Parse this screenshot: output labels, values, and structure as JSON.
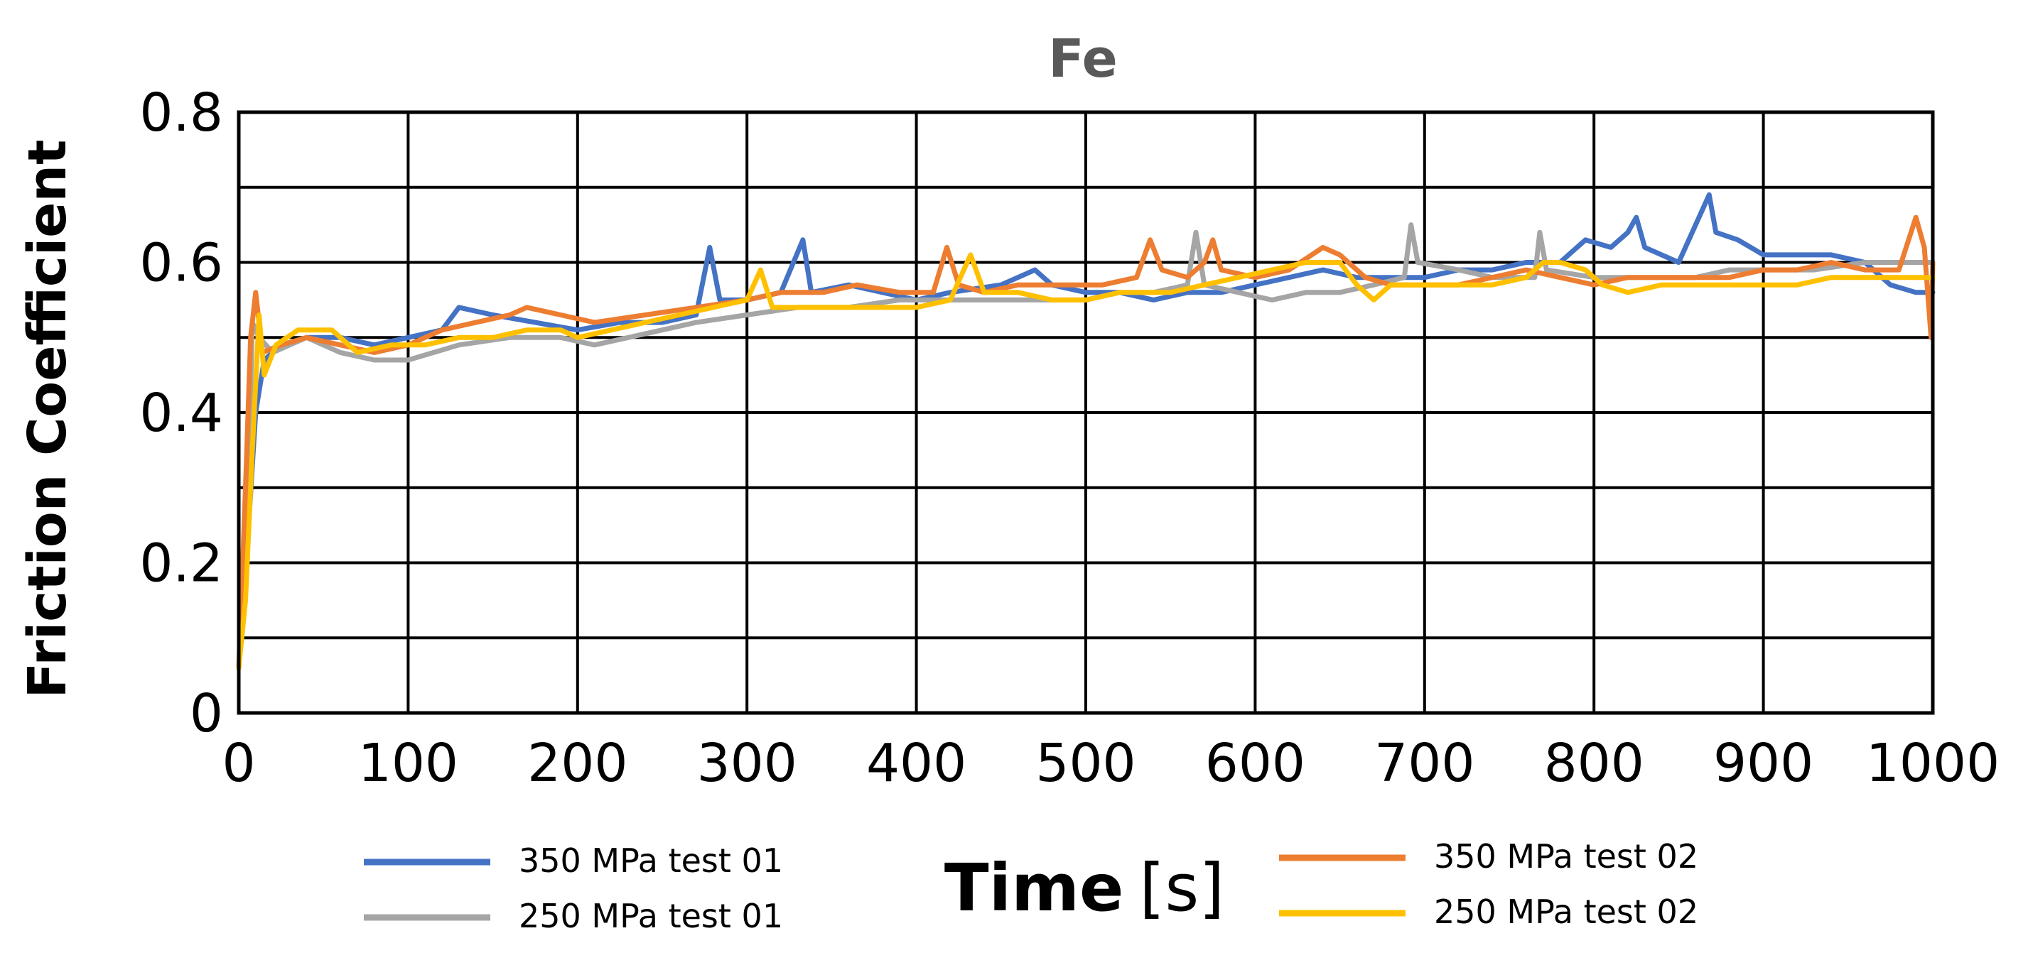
{
  "chart_data": {
    "type": "line",
    "title": "Fe",
    "ylabel": "Friction Coefficient",
    "xlabel_bold": "Time",
    "xlabel_unit": "[s]",
    "xlim": [
      0,
      1000
    ],
    "ylim": [
      0,
      0.8
    ],
    "xticks": [
      0,
      100,
      200,
      300,
      400,
      500,
      600,
      700,
      800,
      900,
      1000
    ],
    "yticks": [
      0,
      0.2,
      0.4,
      0.6,
      0.8
    ],
    "ytick_labels": [
      "0",
      "0.2",
      "0.4",
      "0.6",
      "0.8"
    ],
    "grid": true,
    "series": [
      {
        "name": "350 MPa test 01",
        "color": "#4472C4",
        "points": [
          [
            0,
            0.06
          ],
          [
            5,
            0.22
          ],
          [
            10,
            0.4
          ],
          [
            15,
            0.47
          ],
          [
            25,
            0.49
          ],
          [
            40,
            0.5
          ],
          [
            60,
            0.5
          ],
          [
            80,
            0.49
          ],
          [
            100,
            0.5
          ],
          [
            120,
            0.51
          ],
          [
            130,
            0.54
          ],
          [
            150,
            0.53
          ],
          [
            175,
            0.52
          ],
          [
            200,
            0.51
          ],
          [
            225,
            0.52
          ],
          [
            250,
            0.52
          ],
          [
            270,
            0.53
          ],
          [
            278,
            0.62
          ],
          [
            284,
            0.55
          ],
          [
            300,
            0.55
          ],
          [
            320,
            0.56
          ],
          [
            333,
            0.63
          ],
          [
            338,
            0.56
          ],
          [
            360,
            0.57
          ],
          [
            380,
            0.56
          ],
          [
            400,
            0.55
          ],
          [
            420,
            0.56
          ],
          [
            450,
            0.57
          ],
          [
            470,
            0.59
          ],
          [
            480,
            0.57
          ],
          [
            500,
            0.56
          ],
          [
            520,
            0.56
          ],
          [
            540,
            0.55
          ],
          [
            560,
            0.56
          ],
          [
            580,
            0.56
          ],
          [
            600,
            0.57
          ],
          [
            620,
            0.58
          ],
          [
            640,
            0.59
          ],
          [
            660,
            0.58
          ],
          [
            680,
            0.58
          ],
          [
            700,
            0.58
          ],
          [
            720,
            0.59
          ],
          [
            740,
            0.59
          ],
          [
            760,
            0.6
          ],
          [
            780,
            0.6
          ],
          [
            795,
            0.63
          ],
          [
            810,
            0.62
          ],
          [
            820,
            0.64
          ],
          [
            825,
            0.66
          ],
          [
            830,
            0.62
          ],
          [
            850,
            0.6
          ],
          [
            868,
            0.69
          ],
          [
            872,
            0.64
          ],
          [
            885,
            0.63
          ],
          [
            900,
            0.61
          ],
          [
            920,
            0.61
          ],
          [
            940,
            0.61
          ],
          [
            960,
            0.6
          ],
          [
            975,
            0.57
          ],
          [
            990,
            0.56
          ],
          [
            1000,
            0.56
          ]
        ]
      },
      {
        "name": "250 MPa test 01",
        "color": "#A5A5A5",
        "points": [
          [
            0,
            0.06
          ],
          [
            5,
            0.25
          ],
          [
            8,
            0.52
          ],
          [
            12,
            0.5
          ],
          [
            20,
            0.48
          ],
          [
            40,
            0.5
          ],
          [
            60,
            0.48
          ],
          [
            80,
            0.47
          ],
          [
            100,
            0.47
          ],
          [
            130,
            0.49
          ],
          [
            160,
            0.5
          ],
          [
            190,
            0.5
          ],
          [
            210,
            0.49
          ],
          [
            230,
            0.5
          ],
          [
            250,
            0.51
          ],
          [
            270,
            0.52
          ],
          [
            300,
            0.53
          ],
          [
            330,
            0.54
          ],
          [
            360,
            0.54
          ],
          [
            390,
            0.55
          ],
          [
            400,
            0.55
          ],
          [
            420,
            0.55
          ],
          [
            440,
            0.55
          ],
          [
            460,
            0.55
          ],
          [
            480,
            0.55
          ],
          [
            500,
            0.55
          ],
          [
            520,
            0.56
          ],
          [
            540,
            0.56
          ],
          [
            560,
            0.57
          ],
          [
            565,
            0.64
          ],
          [
            570,
            0.57
          ],
          [
            590,
            0.56
          ],
          [
            610,
            0.55
          ],
          [
            630,
            0.56
          ],
          [
            650,
            0.56
          ],
          [
            670,
            0.57
          ],
          [
            688,
            0.58
          ],
          [
            692,
            0.65
          ],
          [
            696,
            0.6
          ],
          [
            720,
            0.59
          ],
          [
            740,
            0.58
          ],
          [
            765,
            0.58
          ],
          [
            768,
            0.64
          ],
          [
            772,
            0.59
          ],
          [
            800,
            0.58
          ],
          [
            830,
            0.58
          ],
          [
            860,
            0.58
          ],
          [
            880,
            0.59
          ],
          [
            900,
            0.59
          ],
          [
            930,
            0.59
          ],
          [
            960,
            0.6
          ],
          [
            1000,
            0.6
          ]
        ]
      },
      {
        "name": "350 MPa test 02",
        "color": "#ED7D31",
        "points": [
          [
            0,
            0.06
          ],
          [
            4,
            0.3
          ],
          [
            7,
            0.5
          ],
          [
            10,
            0.56
          ],
          [
            14,
            0.48
          ],
          [
            25,
            0.49
          ],
          [
            40,
            0.5
          ],
          [
            60,
            0.49
          ],
          [
            80,
            0.48
          ],
          [
            100,
            0.49
          ],
          [
            120,
            0.51
          ],
          [
            140,
            0.52
          ],
          [
            160,
            0.53
          ],
          [
            170,
            0.54
          ],
          [
            190,
            0.53
          ],
          [
            210,
            0.52
          ],
          [
            240,
            0.53
          ],
          [
            270,
            0.54
          ],
          [
            300,
            0.55
          ],
          [
            320,
            0.56
          ],
          [
            345,
            0.56
          ],
          [
            365,
            0.57
          ],
          [
            390,
            0.56
          ],
          [
            410,
            0.56
          ],
          [
            418,
            0.62
          ],
          [
            425,
            0.57
          ],
          [
            440,
            0.56
          ],
          [
            460,
            0.57
          ],
          [
            490,
            0.57
          ],
          [
            510,
            0.57
          ],
          [
            530,
            0.58
          ],
          [
            538,
            0.63
          ],
          [
            545,
            0.59
          ],
          [
            560,
            0.58
          ],
          [
            570,
            0.6
          ],
          [
            575,
            0.63
          ],
          [
            580,
            0.59
          ],
          [
            600,
            0.58
          ],
          [
            620,
            0.59
          ],
          [
            640,
            0.62
          ],
          [
            650,
            0.61
          ],
          [
            665,
            0.58
          ],
          [
            680,
            0.57
          ],
          [
            700,
            0.57
          ],
          [
            720,
            0.57
          ],
          [
            740,
            0.58
          ],
          [
            760,
            0.59
          ],
          [
            780,
            0.58
          ],
          [
            800,
            0.57
          ],
          [
            820,
            0.58
          ],
          [
            840,
            0.58
          ],
          [
            860,
            0.58
          ],
          [
            880,
            0.58
          ],
          [
            900,
            0.59
          ],
          [
            920,
            0.59
          ],
          [
            940,
            0.6
          ],
          [
            960,
            0.59
          ],
          [
            980,
            0.59
          ],
          [
            990,
            0.66
          ],
          [
            995,
            0.62
          ],
          [
            999,
            0.5
          ],
          [
            1000,
            0.6
          ]
        ]
      },
      {
        "name": "250 MPa test 02",
        "color": "#FFC000",
        "points": [
          [
            0,
            0.06
          ],
          [
            4,
            0.15
          ],
          [
            8,
            0.35
          ],
          [
            12,
            0.53
          ],
          [
            15,
            0.45
          ],
          [
            22,
            0.49
          ],
          [
            35,
            0.51
          ],
          [
            55,
            0.51
          ],
          [
            70,
            0.48
          ],
          [
            90,
            0.49
          ],
          [
            110,
            0.49
          ],
          [
            130,
            0.5
          ],
          [
            150,
            0.5
          ],
          [
            170,
            0.51
          ],
          [
            190,
            0.51
          ],
          [
            200,
            0.5
          ],
          [
            220,
            0.51
          ],
          [
            240,
            0.52
          ],
          [
            260,
            0.53
          ],
          [
            280,
            0.54
          ],
          [
            300,
            0.55
          ],
          [
            308,
            0.59
          ],
          [
            315,
            0.54
          ],
          [
            330,
            0.54
          ],
          [
            350,
            0.54
          ],
          [
            370,
            0.54
          ],
          [
            400,
            0.54
          ],
          [
            420,
            0.55
          ],
          [
            432,
            0.61
          ],
          [
            440,
            0.56
          ],
          [
            460,
            0.56
          ],
          [
            480,
            0.55
          ],
          [
            500,
            0.55
          ],
          [
            520,
            0.56
          ],
          [
            550,
            0.56
          ],
          [
            570,
            0.57
          ],
          [
            590,
            0.58
          ],
          [
            610,
            0.59
          ],
          [
            630,
            0.6
          ],
          [
            650,
            0.6
          ],
          [
            660,
            0.57
          ],
          [
            670,
            0.55
          ],
          [
            680,
            0.57
          ],
          [
            700,
            0.57
          ],
          [
            720,
            0.57
          ],
          [
            740,
            0.57
          ],
          [
            760,
            0.58
          ],
          [
            770,
            0.6
          ],
          [
            780,
            0.6
          ],
          [
            795,
            0.59
          ],
          [
            805,
            0.57
          ],
          [
            820,
            0.56
          ],
          [
            840,
            0.57
          ],
          [
            860,
            0.57
          ],
          [
            880,
            0.57
          ],
          [
            900,
            0.57
          ],
          [
            920,
            0.57
          ],
          [
            940,
            0.58
          ],
          [
            960,
            0.58
          ],
          [
            980,
            0.58
          ],
          [
            1000,
            0.58
          ]
        ]
      }
    ]
  }
}
